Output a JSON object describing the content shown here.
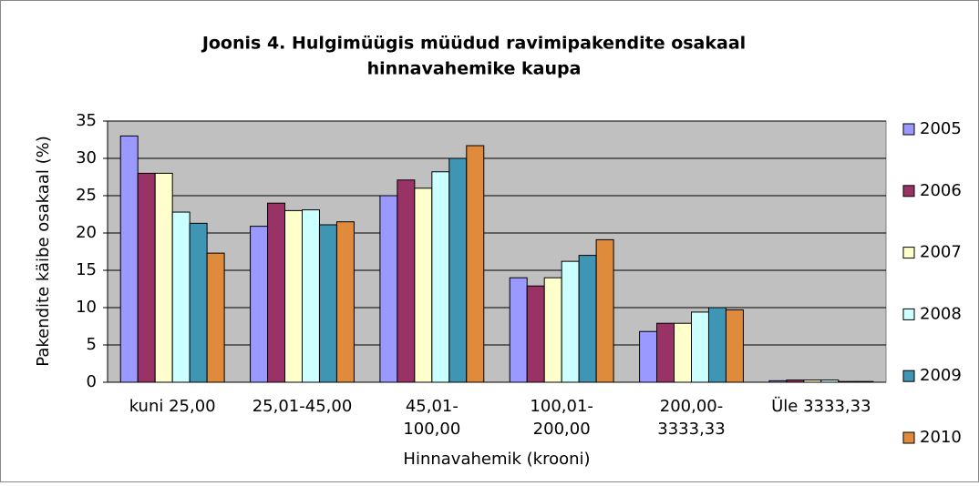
{
  "chart_data": {
    "type": "bar",
    "title": [
      "Joonis 4. Hulgimüügis müüdud ravimipakendite osakaal",
      "hinnavahemike kaupa"
    ],
    "y_label": "Pakendite käibe osakaal (%)",
    "x_label": "Hinnavahemik (krooni)",
    "categories": [
      [
        "kuni 25,00"
      ],
      [
        "25,01-45,00"
      ],
      [
        "45,01-",
        "100,00"
      ],
      [
        "100,01-",
        "200,00"
      ],
      [
        "200,00-",
        "3333,33"
      ],
      [
        "Üle 3333,33"
      ]
    ],
    "series": [
      {
        "name": "2005",
        "color": "#9999ff",
        "values": [
          33,
          20.9,
          25,
          14,
          6.8,
          0.2
        ]
      },
      {
        "name": "2006",
        "color": "#993366",
        "values": [
          28,
          24,
          27.1,
          12.9,
          7.9,
          0.3
        ]
      },
      {
        "name": "2007",
        "color": "#ffffcc",
        "values": [
          28,
          23,
          26,
          14,
          7.9,
          0.3
        ]
      },
      {
        "name": "2008",
        "color": "#ccffff",
        "values": [
          22.8,
          23.1,
          28.2,
          16.2,
          9.4,
          0.3
        ]
      },
      {
        "name": "2009",
        "color": "#3f96b4",
        "values": [
          21.3,
          21.1,
          30,
          17,
          10,
          0.1
        ]
      },
      {
        "name": "2010",
        "color": "#e08a3c",
        "values": [
          17.3,
          21.5,
          31.7,
          19.1,
          9.7,
          0.1
        ]
      }
    ],
    "ylim": [
      0,
      35
    ],
    "yticks": [
      0,
      5,
      10,
      15,
      20,
      25,
      30,
      35
    ],
    "grid": true,
    "legend": "right"
  }
}
